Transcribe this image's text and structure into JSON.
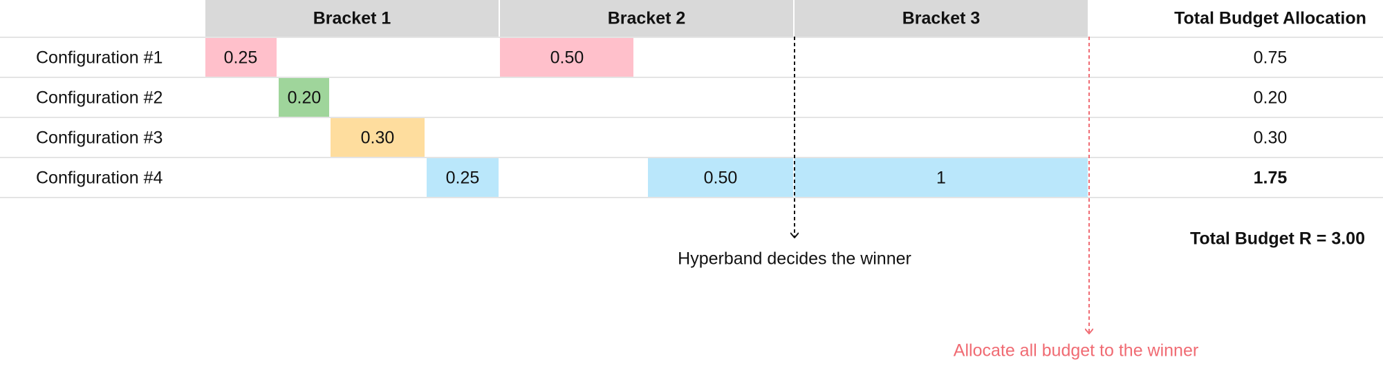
{
  "header": {
    "columns": [
      "Bracket 1",
      "Bracket 2",
      "Bracket 3"
    ],
    "total_label": "Total Budget Allocation"
  },
  "rows": [
    {
      "label": "Configuration #1",
      "allocations": [
        "0.25",
        "0.50"
      ],
      "total": "0.75"
    },
    {
      "label": "Configuration #2",
      "allocations": [
        "0.20"
      ],
      "total": "0.20"
    },
    {
      "label": "Configuration #3",
      "allocations": [
        "0.30"
      ],
      "total": "0.30"
    },
    {
      "label": "Configuration #4",
      "allocations": [
        "0.25",
        "0.50",
        "1"
      ],
      "total": "1.75"
    }
  ],
  "total_budget": "Total Budget R = 3.00",
  "annotations": {
    "winner": "Hyperband decides the winner",
    "allocate": "Allocate all budget to the winner"
  }
}
